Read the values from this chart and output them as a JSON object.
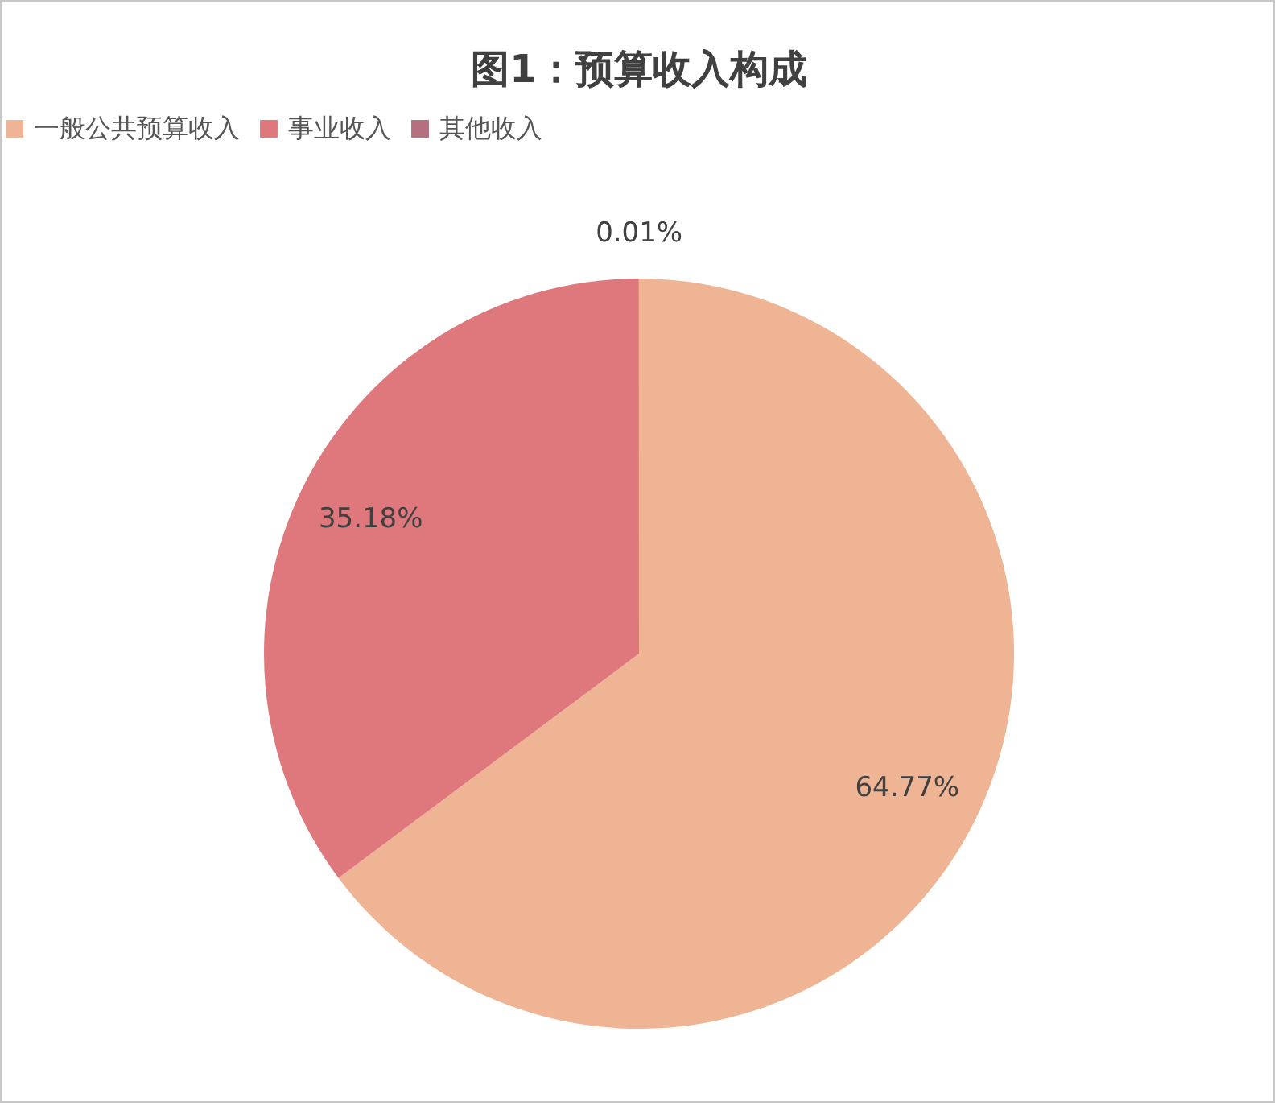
{
  "chart_data": {
    "type": "pie",
    "title": "图1：预算收入构成",
    "categories": [
      "一般公共预算收入",
      "事业收入",
      "其他收入"
    ],
    "values": [
      64.77,
      35.18,
      0.01
    ],
    "colors": [
      "#eeb493",
      "#de787c",
      "#b5707f"
    ],
    "value_labels": [
      "64.77%",
      "35.18%",
      "0.01%"
    ],
    "legend": "top"
  }
}
